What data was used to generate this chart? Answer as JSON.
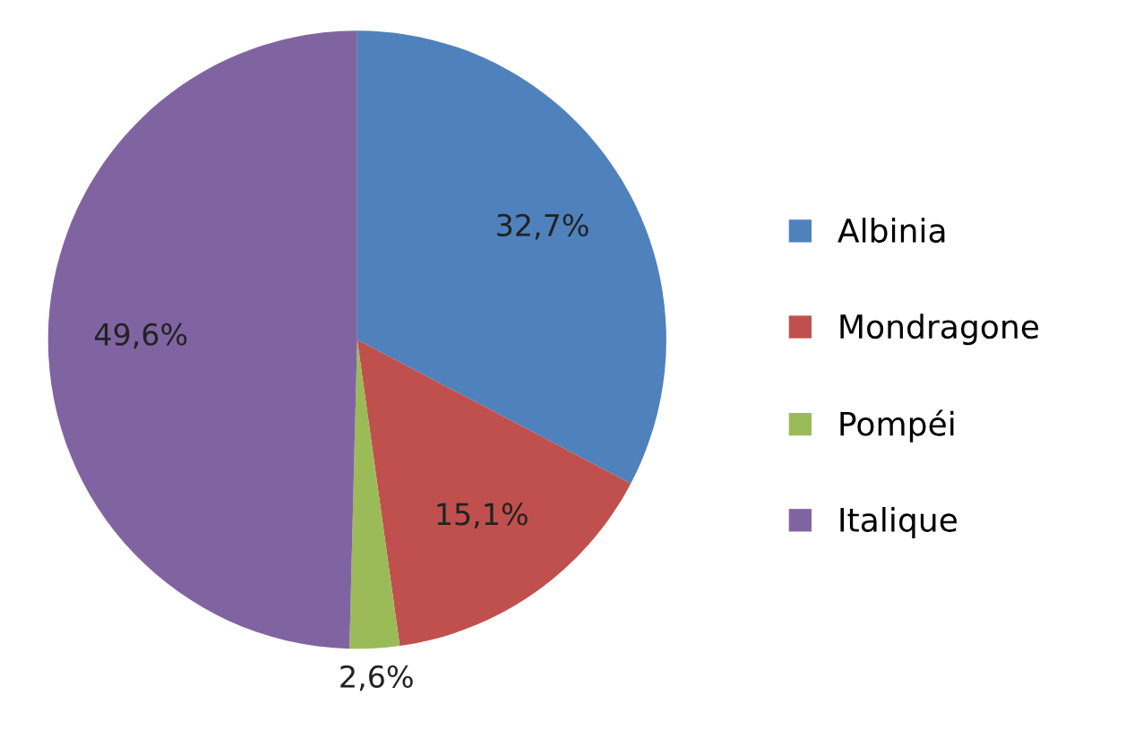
{
  "chart_data": {
    "type": "pie",
    "categories": [
      "Albinia",
      "Mondragone",
      "Pompéi",
      "Italique"
    ],
    "values": [
      32.7,
      15.1,
      2.6,
      49.6
    ],
    "value_labels": [
      "32,7%",
      "15,1%",
      "2,6%",
      "49,6%"
    ],
    "colors": [
      "#4f81bd",
      "#c0504d",
      "#9bbb59",
      "#8064a2"
    ],
    "legend": "right"
  }
}
